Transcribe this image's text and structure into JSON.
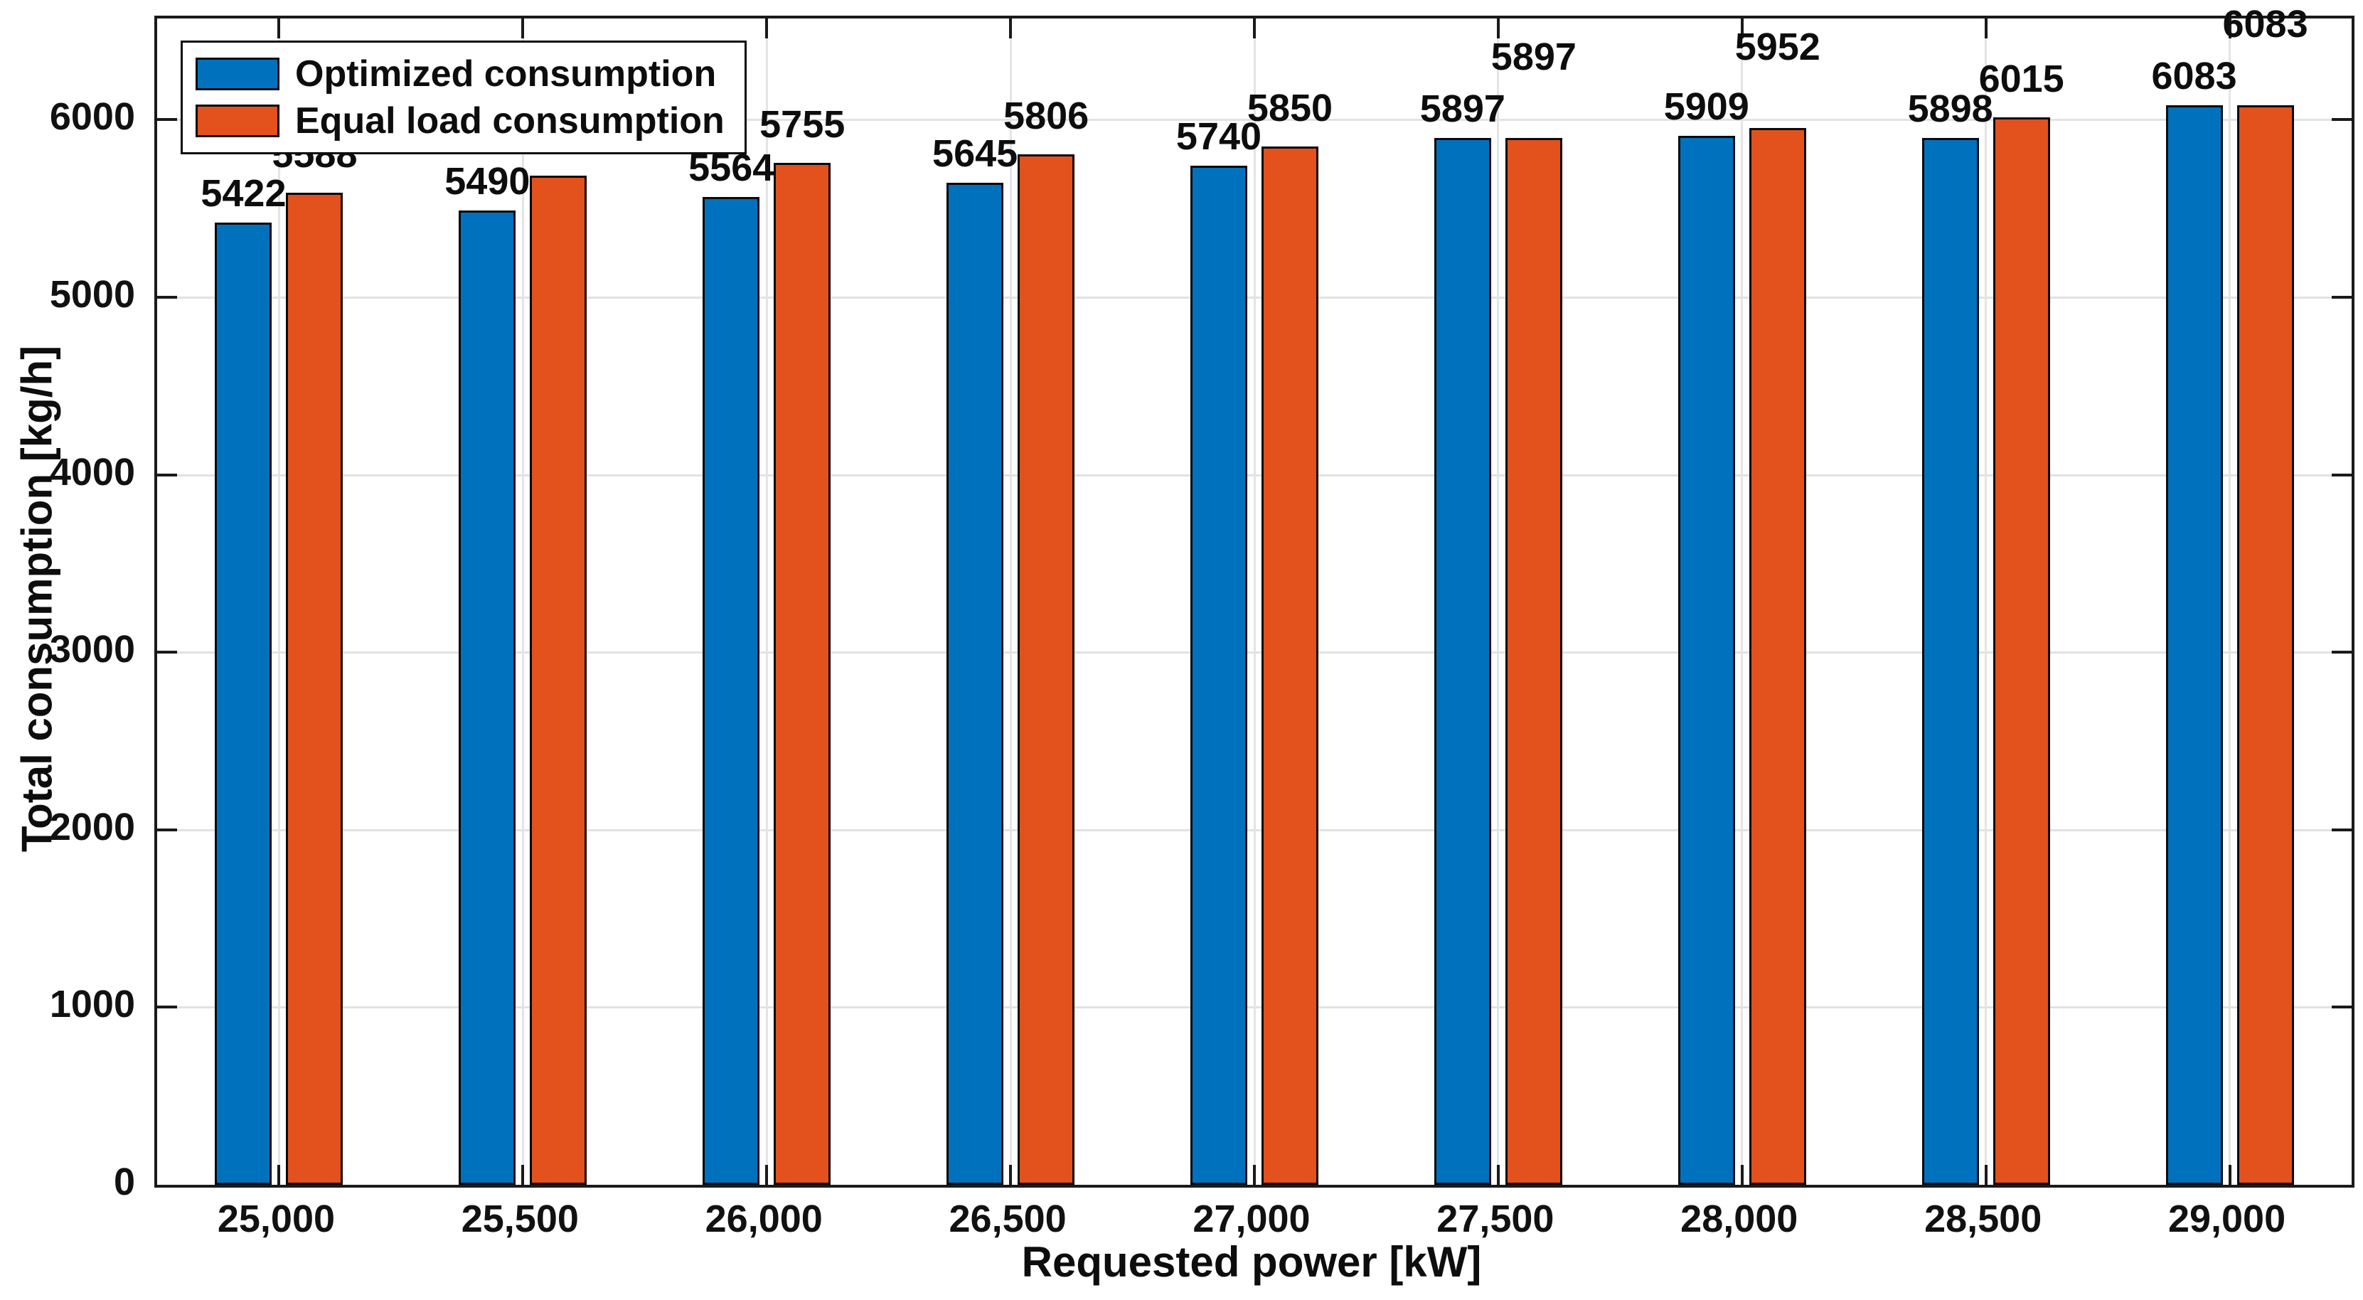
{
  "chart_data": {
    "type": "bar",
    "title": "",
    "xlabel": "Requested power [kW]",
    "ylabel": "Total consumption [kg/h]",
    "categories": [
      "25,000",
      "25,500",
      "26,000",
      "26,500",
      "27,000",
      "27,500",
      "28,000",
      "28,500",
      "29,000"
    ],
    "series": [
      {
        "name": "Optimized consumption",
        "color": "#0072BD",
        "values": [
          5422,
          5490,
          5564,
          5645,
          5740,
          5897,
          5909,
          5898,
          6083
        ]
      },
      {
        "name": "Equal load consumption",
        "color": "#E3511C",
        "values": [
          5588,
          5686,
          5755,
          5806,
          5850,
          5897,
          5952,
          6015,
          6083
        ]
      }
    ],
    "ylim": [
      0,
      6570
    ],
    "yticks": [
      0,
      1000,
      2000,
      3000,
      4000,
      5000,
      6000
    ],
    "ytick_labels": [
      "0",
      "1000",
      "2000",
      "3000",
      "4000",
      "5000",
      "6000"
    ],
    "grid": true,
    "legend_position": "top-left",
    "bar_edge_color": "#09090f",
    "value_labels": true
  },
  "legend": {
    "items": [
      {
        "label": "Optimized consumption"
      },
      {
        "label": "Equal load consumption"
      }
    ]
  }
}
